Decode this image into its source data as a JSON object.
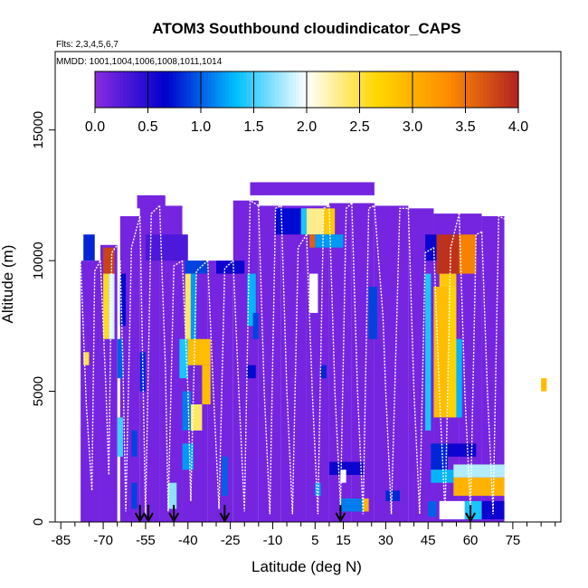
{
  "chart_data": {
    "type": "heatmap",
    "title": "ATOM3 Southbound cloudindicator_CAPS",
    "subtitle_flights": "Flts: 2,3,4,5,6,7",
    "subtitle_dates": "MMDD: 1001,1004,1006,1008,1011,1014",
    "xlabel": "Latitude (deg N)",
    "ylabel": "Altitude (m)",
    "xlim": [
      -87,
      92
    ],
    "ylim": [
      0,
      18000
    ],
    "x_ticks": [
      -85,
      -70,
      -55,
      -40,
      -25,
      -10,
      5,
      15,
      30,
      45,
      60,
      75
    ],
    "x_tick_labels": [
      "-85",
      "-70",
      "-55",
      "-40",
      "-25",
      "-10",
      "5",
      "15",
      "30",
      "45",
      "60",
      "75"
    ],
    "y_ticks": [
      0,
      5000,
      10000,
      15000
    ],
    "y_tick_labels": [
      "0",
      "5000",
      "10000",
      "15000"
    ],
    "colorbar": {
      "min": 0,
      "max": 4,
      "ticks": [
        0.0,
        0.5,
        1.0,
        1.5,
        2.0,
        2.5,
        3.0,
        3.5,
        4.0
      ],
      "tick_labels": [
        "0.0",
        "0.5",
        "1.0",
        "1.5",
        "2.0",
        "2.5",
        "3.0",
        "3.5",
        "4.0"
      ],
      "colors": [
        "#8a2be2",
        "#0000cd",
        "#00bfff",
        "#ffffff",
        "#ffd700",
        "#ff8c00",
        "#b22222"
      ]
    },
    "background_value": 0.1,
    "cells": [
      {
        "x": [
          -58,
          -48
        ],
        "y": [
          12000,
          12500
        ],
        "v": 0.1
      },
      {
        "x": [
          -18,
          26
        ],
        "y": [
          12500,
          13000
        ],
        "v": 0.1
      },
      {
        "x": [
          -9,
          0
        ],
        "y": [
          11000,
          12000
        ],
        "v": 0.7
      },
      {
        "x": [
          0,
          2
        ],
        "y": [
          11000,
          12000
        ],
        "v": 1.4
      },
      {
        "x": [
          2,
          8
        ],
        "y": [
          11000,
          12000
        ],
        "v": 2.3
      },
      {
        "x": [
          8,
          12
        ],
        "y": [
          11000,
          12000
        ],
        "v": 2.8
      },
      {
        "x": [
          3,
          5
        ],
        "y": [
          10500,
          11000
        ],
        "v": 3.6
      },
      {
        "x": [
          5,
          15
        ],
        "y": [
          10500,
          11000
        ],
        "v": 1.2
      },
      {
        "x": [
          -77,
          -73
        ],
        "y": [
          10000,
          11000
        ],
        "v": 0.8
      },
      {
        "x": [
          -70,
          -66
        ],
        "y": [
          9500,
          10500
        ],
        "v": 3.8
      },
      {
        "x": [
          -55,
          -40
        ],
        "y": [
          10000,
          11000
        ],
        "v": 0.3
      },
      {
        "x": [
          -41,
          -33
        ],
        "y": [
          9500,
          10000
        ],
        "v": 0.9
      },
      {
        "x": [
          -30,
          -20
        ],
        "y": [
          9500,
          10000
        ],
        "v": 0.6
      },
      {
        "x": [
          44,
          48
        ],
        "y": [
          10000,
          11000
        ],
        "v": 0.6
      },
      {
        "x": [
          48,
          56
        ],
        "y": [
          9500,
          11000
        ],
        "v": 3.9
      },
      {
        "x": [
          56,
          62
        ],
        "y": [
          9500,
          11000
        ],
        "v": 3.4
      },
      {
        "x": [
          49,
          55
        ],
        "y": [
          9000,
          9500
        ],
        "v": 2.8
      },
      {
        "x": [
          -70,
          -68
        ],
        "y": [
          7000,
          9500
        ],
        "v": 2.6
      },
      {
        "x": [
          -68,
          -66
        ],
        "y": [
          7000,
          9500
        ],
        "v": 1.9
      },
      {
        "x": [
          -64,
          -62
        ],
        "y": [
          7500,
          9500
        ],
        "v": 0.7
      },
      {
        "x": [
          -41,
          -39
        ],
        "y": [
          6000,
          9500
        ],
        "v": 2.4
      },
      {
        "x": [
          -39,
          -37
        ],
        "y": [
          6000,
          9500
        ],
        "v": 1.2
      },
      {
        "x": [
          -19,
          -16
        ],
        "y": [
          7500,
          9500
        ],
        "v": 1.3
      },
      {
        "x": [
          -17,
          -15
        ],
        "y": [
          7000,
          8000
        ],
        "v": 0.9
      },
      {
        "x": [
          3,
          6
        ],
        "y": [
          8000,
          9500
        ],
        "v": 2.0
      },
      {
        "x": [
          24,
          27
        ],
        "y": [
          7000,
          9000
        ],
        "v": 0.9
      },
      {
        "x": [
          44,
          46
        ],
        "y": [
          3500,
          9500
        ],
        "v": 1.4
      },
      {
        "x": [
          47,
          52
        ],
        "y": [
          4000,
          9000
        ],
        "v": 2.9
      },
      {
        "x": [
          52,
          55
        ],
        "y": [
          4000,
          9000
        ],
        "v": 2.7
      },
      {
        "x": [
          55,
          57
        ],
        "y": [
          4000,
          7000
        ],
        "v": 1.3
      },
      {
        "x": [
          -43,
          -40
        ],
        "y": [
          5500,
          7000
        ],
        "v": 1.4
      },
      {
        "x": [
          -40,
          -32
        ],
        "y": [
          6000,
          7000
        ],
        "v": 2.9
      },
      {
        "x": [
          -42,
          -39
        ],
        "y": [
          3500,
          5000
        ],
        "v": 1.1
      },
      {
        "x": [
          -39,
          -35
        ],
        "y": [
          3500,
          4500
        ],
        "v": 2.4
      },
      {
        "x": [
          -35,
          -32
        ],
        "y": [
          4500,
          6000
        ],
        "v": 2.9
      },
      {
        "x": [
          -65,
          -63
        ],
        "y": [
          5500,
          7000
        ],
        "v": 1.0
      },
      {
        "x": [
          -57,
          -55
        ],
        "y": [
          5000,
          6500
        ],
        "v": 0.8
      },
      {
        "x": [
          -77,
          -75
        ],
        "y": [
          6000,
          6500
        ],
        "v": 2.5
      },
      {
        "x": [
          85,
          87
        ],
        "y": [
          5000,
          5500
        ],
        "v": 2.9
      },
      {
        "x": [
          -19,
          -16
        ],
        "y": [
          5500,
          6000
        ],
        "v": 0.7
      },
      {
        "x": [
          7,
          9
        ],
        "y": [
          5500,
          6000
        ],
        "v": 0.8
      },
      {
        "x": [
          -65,
          -63
        ],
        "y": [
          2500,
          4000
        ],
        "v": 1.5
      },
      {
        "x": [
          -60,
          -58
        ],
        "y": [
          2500,
          3500
        ],
        "v": 0.9
      },
      {
        "x": [
          -42,
          -38
        ],
        "y": [
          2000,
          3000
        ],
        "v": 1.2
      },
      {
        "x": [
          46,
          52
        ],
        "y": [
          2000,
          3000
        ],
        "v": 0.8
      },
      {
        "x": [
          52,
          62
        ],
        "y": [
          2500,
          3000
        ],
        "v": 0.6
      },
      {
        "x": [
          -28,
          -26
        ],
        "y": [
          1000,
          2500
        ],
        "v": 1.0
      },
      {
        "x": [
          5,
          7
        ],
        "y": [
          1000,
          1500
        ],
        "v": 1.2
      },
      {
        "x": [
          10,
          22
        ],
        "y": [
          1800,
          2300
        ],
        "v": 0.6
      },
      {
        "x": [
          14,
          16
        ],
        "y": [
          1500,
          2000
        ],
        "v": 2.0
      },
      {
        "x": [
          46,
          54
        ],
        "y": [
          1500,
          2000
        ],
        "v": 1.3
      },
      {
        "x": [
          54,
          72
        ],
        "y": [
          1700,
          2200
        ],
        "v": 1.8
      },
      {
        "x": [
          54,
          72
        ],
        "y": [
          1000,
          1700
        ],
        "v": 3.0
      },
      {
        "x": [
          -60,
          -58
        ],
        "y": [
          500,
          1500
        ],
        "v": 0.9
      },
      {
        "x": [
          -47,
          -44
        ],
        "y": [
          500,
          1500
        ],
        "v": 1.7
      },
      {
        "x": [
          14,
          22
        ],
        "y": [
          400,
          900
        ],
        "v": 1.1
      },
      {
        "x": [
          22,
          24
        ],
        "y": [
          400,
          900
        ],
        "v": 3.0
      },
      {
        "x": [
          30,
          35
        ],
        "y": [
          800,
          1200
        ],
        "v": 0.8
      },
      {
        "x": [
          45,
          48
        ],
        "y": [
          200,
          800
        ],
        "v": 1.0
      },
      {
        "x": [
          49,
          58
        ],
        "y": [
          100,
          800
        ],
        "v": 2.0
      },
      {
        "x": [
          58,
          64
        ],
        "y": [
          100,
          800
        ],
        "v": 1.4
      },
      {
        "x": [
          64,
          72
        ],
        "y": [
          100,
          800
        ],
        "v": 0.6
      }
    ],
    "profiles": [
      [
        [
          -78,
          10000
        ],
        [
          -76,
          4500
        ],
        [
          -74,
          1200
        ],
        [
          -73,
          9600
        ],
        [
          -71,
          10000
        ]
      ],
      [
        [
          -71,
          10000
        ],
        [
          -69,
          5000
        ],
        [
          -68,
          1800
        ],
        [
          -67,
          10300
        ],
        [
          -65,
          10600
        ]
      ],
      [
        [
          -64,
          10000
        ],
        [
          -63,
          6000
        ],
        [
          -62,
          400
        ],
        [
          -60,
          10500
        ],
        [
          -57,
          11700
        ]
      ],
      [
        [
          -57,
          11700
        ],
        [
          -56,
          6000
        ],
        [
          -55,
          300
        ],
        [
          -53,
          11800
        ],
        [
          -50,
          12100
        ]
      ],
      [
        [
          -50,
          12100
        ],
        [
          -48,
          6000
        ],
        [
          -47,
          400
        ],
        [
          -45,
          9800
        ],
        [
          -42,
          10000
        ]
      ],
      [
        [
          -42,
          10000
        ],
        [
          -40,
          5000
        ],
        [
          -39,
          800
        ],
        [
          -37,
          9600
        ],
        [
          -33,
          10000
        ]
      ],
      [
        [
          -33,
          10000
        ],
        [
          -31,
          5000
        ],
        [
          -29,
          500
        ],
        [
          -27,
          9700
        ],
        [
          -24,
          10000
        ]
      ],
      [
        [
          -24,
          10000
        ],
        [
          -22,
          5000
        ],
        [
          -20,
          400
        ],
        [
          -18,
          12300
        ],
        [
          -15,
          12100
        ]
      ],
      [
        [
          -15,
          12100
        ],
        [
          -13,
          5000
        ],
        [
          -11,
          300
        ],
        [
          -9,
          12000
        ],
        [
          -7,
          12100
        ]
      ],
      [
        [
          -7,
          12100
        ],
        [
          -5,
          5000
        ],
        [
          -3,
          300
        ],
        [
          -1,
          10500
        ],
        [
          2,
          11000
        ]
      ],
      [
        [
          2,
          11000
        ],
        [
          4,
          5000
        ],
        [
          6,
          300
        ],
        [
          8,
          12000
        ],
        [
          10,
          12100
        ]
      ],
      [
        [
          10,
          12100
        ],
        [
          12,
          5000
        ],
        [
          14,
          600
        ],
        [
          16,
          12000
        ],
        [
          18,
          12200
        ]
      ],
      [
        [
          18,
          12200
        ],
        [
          20,
          5000
        ],
        [
          22,
          300
        ],
        [
          24,
          12000
        ],
        [
          26,
          12100
        ]
      ],
      [
        [
          26,
          12100
        ],
        [
          29,
          7900
        ],
        [
          30,
          5000
        ],
        [
          32,
          300
        ],
        [
          35,
          12000
        ],
        [
          38,
          12000
        ]
      ],
      [
        [
          38,
          12000
        ],
        [
          40,
          5000
        ],
        [
          42,
          300
        ],
        [
          44,
          10300
        ],
        [
          47,
          10500
        ]
      ],
      [
        [
          47,
          10500
        ],
        [
          49,
          5000
        ],
        [
          51,
          300
        ],
        [
          53,
          10500
        ],
        [
          56,
          11800
        ]
      ],
      [
        [
          56,
          11800
        ],
        [
          58,
          5000
        ],
        [
          60,
          400
        ],
        [
          62,
          11000
        ],
        [
          64,
          11100
        ]
      ],
      [
        [
          64,
          11100
        ],
        [
          66,
          5000
        ],
        [
          68,
          300
        ],
        [
          70,
          11700
        ],
        [
          72,
          11600
        ]
      ]
    ],
    "arrows_lat": [
      -57,
      -54,
      -45,
      -27,
      14,
      60
    ]
  }
}
